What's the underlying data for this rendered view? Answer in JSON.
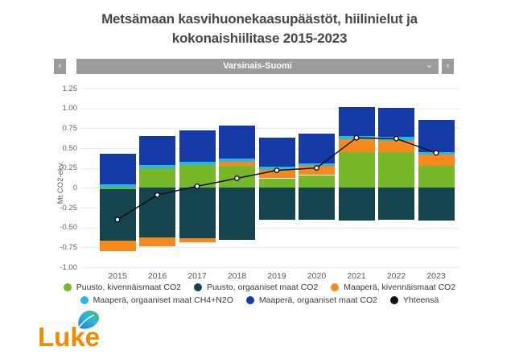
{
  "title": {
    "line1": "Metsämaan kasvihuonekaasupäästöt, hiilinielut ja",
    "line2": "kokonaishiilitase 2015-2023"
  },
  "selector": {
    "value": "Varsinais-Suomi"
  },
  "icons": {
    "chevron_left": "‹",
    "chevron_right": "›",
    "chevron_down": "⌄"
  },
  "logo": {
    "text": "Luke"
  },
  "chart_data": {
    "type": "bar",
    "subtype": "stacked-bar-with-line",
    "categories": [
      "2015",
      "2016",
      "2017",
      "2018",
      "2019",
      "2020",
      "2021",
      "2022",
      "2023"
    ],
    "ylabel": "Mt CO2-ekv.",
    "ylim": [
      -1.0,
      1.25
    ],
    "ytick_step": 0.25,
    "yticks": [
      "1.25",
      "1.00",
      "0.75",
      "0.50",
      "0.25",
      "0",
      "-0.25",
      "-0.50",
      "-0.75",
      "-1.00"
    ],
    "grid": true,
    "legend_position": "bottom",
    "bar_series": [
      {
        "id": "puusto_kiv",
        "name": "Puusto, kivennäismaat CO2",
        "color": "#77b82b",
        "values": [
          -0.02,
          0.25,
          0.29,
          0.28,
          0.12,
          0.16,
          0.45,
          0.45,
          0.28
        ]
      },
      {
        "id": "puusto_org",
        "name": "Puusto, orgaaniset maat CO2",
        "color": "#15434e",
        "values": [
          -0.645,
          -0.625,
          -0.635,
          -0.66,
          -0.4,
          -0.4,
          -0.41,
          -0.4,
          -0.41
        ]
      },
      {
        "id": "maapera_kiv",
        "name": "Maaperä, kivennäismaat CO2",
        "color": "#f6891e",
        "values": [
          -0.135,
          -0.115,
          -0.055,
          0.05,
          0.11,
          0.12,
          0.16,
          0.14,
          0.14
        ]
      },
      {
        "id": "maapera_org_ch4",
        "name": "Maaperä, orgaaniset maat CH4+N2O",
        "color": "#29b7e0",
        "values": [
          0.04,
          0.04,
          0.04,
          0.04,
          0.04,
          0.03,
          0.04,
          0.05,
          0.03
        ]
      },
      {
        "id": "maapera_org_co2",
        "name": "Maaperä, orgaaniset maat CO2",
        "color": "#1539a5",
        "values": [
          0.39,
          0.36,
          0.39,
          0.41,
          0.36,
          0.37,
          0.37,
          0.37,
          0.41
        ]
      }
    ],
    "line_series": {
      "id": "yhteensa",
      "name": "Yhteensä",
      "color": "#111111",
      "values": [
        -0.4,
        -0.09,
        0.02,
        0.12,
        0.22,
        0.25,
        0.63,
        0.62,
        0.44
      ]
    },
    "stack_order_positive": [
      "puusto_kiv",
      "maapera_kiv",
      "maapera_org_ch4",
      "maapera_org_co2"
    ],
    "stack_order_negative": [
      "puusto_kiv",
      "puusto_org",
      "maapera_kiv"
    ],
    "legend_rows": [
      [
        "puusto_kiv",
        "puusto_org",
        "maapera_kiv"
      ],
      [
        "maapera_org_ch4",
        "maapera_org_co2",
        "yhteensa"
      ]
    ]
  }
}
